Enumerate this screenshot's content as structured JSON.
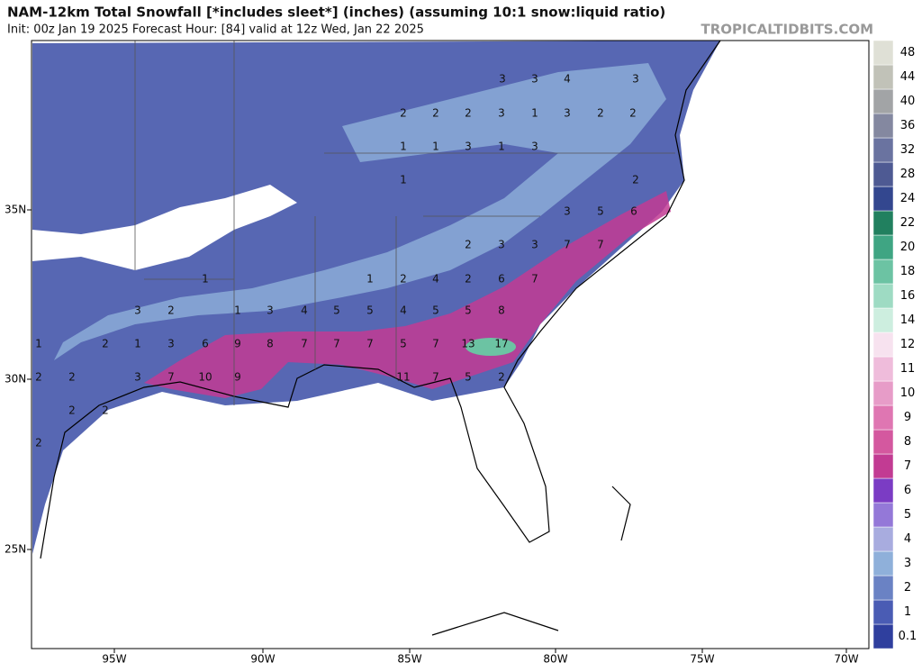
{
  "header": {
    "title": "NAM-12km Total Snowfall [*includes sleet*] (inches) (assuming 10:1 snow:liquid ratio)",
    "subtitle": "Init: 00z Jan 19 2025   Forecast Hour: [84]   valid at 12z Wed, Jan 22 2025",
    "source": "TROPICALTIDBITS.COM"
  },
  "map": {
    "lon_labels": [
      "95W",
      "90W",
      "85W",
      "80W",
      "75W",
      "70W"
    ],
    "lat_labels": [
      "35N",
      "30N",
      "25N"
    ],
    "amount_labels": [
      3,
      4,
      3,
      3,
      2,
      2,
      2,
      3,
      1,
      3,
      2,
      2,
      1,
      1,
      3,
      1,
      3,
      1,
      2,
      3,
      5,
      6,
      2,
      3,
      3,
      7,
      7,
      1,
      1,
      2,
      4,
      2,
      6,
      7,
      3,
      2,
      1,
      3,
      4,
      5,
      5,
      4,
      5,
      5,
      8,
      1,
      2,
      1,
      3,
      6,
      9,
      8,
      7,
      7,
      7,
      5,
      7,
      13,
      17,
      2,
      2,
      3,
      7,
      10,
      9,
      11,
      7,
      5,
      2,
      2,
      2,
      2
    ]
  },
  "colorbar": {
    "levels": [
      0.1,
      1,
      2,
      3,
      4,
      5,
      6,
      7,
      8,
      9,
      10,
      11,
      12,
      14,
      16,
      18,
      20,
      22,
      24,
      28,
      32,
      36,
      40,
      44,
      48
    ],
    "colors": [
      "#2f3f9e",
      "#4a5cb4",
      "#6a82c4",
      "#8fb0da",
      "#a8acdf",
      "#9478d8",
      "#7b3cc4",
      "#c23b93",
      "#d4589f",
      "#df76b2",
      "#e79cc8",
      "#efbcdb",
      "#f7e2ef",
      "#cdeedf",
      "#9edbc3",
      "#6cc3a3",
      "#3fa583",
      "#21805f",
      "#33478f",
      "#4e5a93",
      "#6a73a0",
      "#8488a0",
      "#a2a4a6",
      "#c1c2b8",
      "#dfe0d6"
    ]
  }
}
